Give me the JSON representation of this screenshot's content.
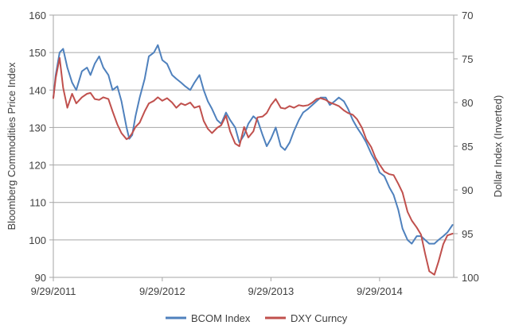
{
  "chart_data": {
    "type": "line",
    "title": "",
    "ylabel": "Bloomberg Commodities Price Index",
    "y2label": "Dollar Index (Inverted)",
    "ylim": [
      90,
      160
    ],
    "y2lim": [
      100,
      70
    ],
    "y2_inverted": true,
    "yticks": [
      "90",
      "100",
      "110",
      "120",
      "130",
      "140",
      "150",
      "160"
    ],
    "y2ticks": [
      "100",
      "95",
      "90",
      "85",
      "80",
      "75",
      "70"
    ],
    "xticks": [
      "9/29/2011",
      "9/29/2012",
      "9/29/2013",
      "9/29/2014"
    ],
    "xlim": [
      "2011-09-29",
      "2015-06-05"
    ],
    "grid": true,
    "legend": "bottom",
    "series": [
      {
        "name": "BCOM Index",
        "axis": "left",
        "color": "#4f81bd",
        "x": [
          "2011-09-29",
          "2011-10-07",
          "2011-10-20",
          "2011-11-01",
          "2011-11-15",
          "2011-12-01",
          "2011-12-15",
          "2012-01-03",
          "2012-01-20",
          "2012-02-01",
          "2012-02-15",
          "2012-03-01",
          "2012-03-15",
          "2012-04-01",
          "2012-04-15",
          "2012-05-01",
          "2012-05-15",
          "2012-06-01",
          "2012-06-10",
          "2012-06-20",
          "2012-07-01",
          "2012-07-15",
          "2012-08-01",
          "2012-08-15",
          "2012-09-01",
          "2012-09-14",
          "2012-09-29",
          "2012-10-15",
          "2012-11-01",
          "2012-11-15",
          "2012-12-01",
          "2012-12-15",
          "2013-01-01",
          "2013-01-15",
          "2013-02-01",
          "2013-02-15",
          "2013-03-01",
          "2013-03-15",
          "2013-04-01",
          "2013-04-15",
          "2013-05-01",
          "2013-05-15",
          "2013-06-01",
          "2013-06-15",
          "2013-07-01",
          "2013-07-15",
          "2013-08-01",
          "2013-08-15",
          "2013-09-01",
          "2013-09-15",
          "2013-09-29",
          "2013-10-15",
          "2013-11-01",
          "2013-11-15",
          "2013-12-01",
          "2013-12-15",
          "2014-01-01",
          "2014-01-15",
          "2014-02-01",
          "2014-02-15",
          "2014-03-01",
          "2014-03-15",
          "2014-04-01",
          "2014-04-15",
          "2014-05-01",
          "2014-05-15",
          "2014-06-01",
          "2014-06-15",
          "2014-07-01",
          "2014-07-15",
          "2014-08-01",
          "2014-08-15",
          "2014-09-01",
          "2014-09-15",
          "2014-09-29",
          "2014-10-15",
          "2014-11-01",
          "2014-11-15",
          "2014-12-01",
          "2014-12-15",
          "2015-01-01",
          "2015-01-15",
          "2015-02-01",
          "2015-02-15",
          "2015-03-01",
          "2015-03-15",
          "2015-04-01",
          "2015-04-15",
          "2015-05-01",
          "2015-05-15",
          "2015-06-01"
        ],
        "values": [
          138,
          144,
          150,
          151,
          146,
          142,
          140,
          145,
          146,
          144,
          147,
          149,
          146,
          144,
          140,
          141,
          137,
          130,
          127,
          128,
          133,
          138,
          143,
          149,
          150,
          152,
          148,
          147,
          144,
          143,
          142,
          141,
          140,
          142,
          144,
          140,
          137,
          135,
          132,
          131,
          134,
          132,
          130,
          126,
          128,
          131,
          133,
          132,
          128,
          125,
          127,
          130,
          125,
          124,
          126,
          129,
          132,
          134,
          135,
          136,
          137,
          138,
          138,
          136,
          137,
          138,
          137,
          135,
          132,
          130,
          128,
          126,
          123,
          121,
          118,
          117,
          114,
          112,
          108,
          103,
          100,
          99,
          101,
          101,
          100,
          99,
          99,
          100,
          101,
          102,
          104
        ]
      },
      {
        "name": "DXY Curncy",
        "axis": "right",
        "color": "#c0504d",
        "x": [
          "2011-09-29",
          "2011-10-07",
          "2011-10-20",
          "2011-11-01",
          "2011-11-15",
          "2011-12-01",
          "2011-12-15",
          "2012-01-03",
          "2012-01-20",
          "2012-02-01",
          "2012-02-15",
          "2012-03-01",
          "2012-03-15",
          "2012-04-01",
          "2012-04-15",
          "2012-05-01",
          "2012-05-15",
          "2012-06-01",
          "2012-06-10",
          "2012-06-20",
          "2012-07-01",
          "2012-07-15",
          "2012-08-01",
          "2012-08-15",
          "2012-09-01",
          "2012-09-14",
          "2012-09-29",
          "2012-10-15",
          "2012-11-01",
          "2012-11-15",
          "2012-12-01",
          "2012-12-15",
          "2013-01-01",
          "2013-01-15",
          "2013-02-01",
          "2013-02-15",
          "2013-03-01",
          "2013-03-15",
          "2013-04-01",
          "2013-04-15",
          "2013-05-01",
          "2013-05-15",
          "2013-06-01",
          "2013-06-15",
          "2013-07-01",
          "2013-07-15",
          "2013-08-01",
          "2013-08-15",
          "2013-09-01",
          "2013-09-15",
          "2013-09-29",
          "2013-10-15",
          "2013-11-01",
          "2013-11-15",
          "2013-12-01",
          "2013-12-15",
          "2014-01-01",
          "2014-01-15",
          "2014-02-01",
          "2014-02-15",
          "2014-03-01",
          "2014-03-15",
          "2014-04-01",
          "2014-04-15",
          "2014-05-01",
          "2014-05-15",
          "2014-06-01",
          "2014-06-15",
          "2014-07-01",
          "2014-07-15",
          "2014-08-01",
          "2014-08-15",
          "2014-09-01",
          "2014-09-15",
          "2014-09-29",
          "2014-10-15",
          "2014-11-01",
          "2014-11-15",
          "2014-12-01",
          "2014-12-15",
          "2015-01-01",
          "2015-01-15",
          "2015-02-01",
          "2015-02-15",
          "2015-03-01",
          "2015-03-15",
          "2015-04-01",
          "2015-04-15",
          "2015-05-01",
          "2015-05-15",
          "2015-06-01"
        ],
        "values": [
          79.5,
          77.2,
          74.9,
          78.3,
          80.6,
          79.0,
          80.1,
          79.4,
          79.0,
          78.9,
          79.6,
          79.7,
          79.4,
          79.6,
          81.0,
          82.5,
          83.5,
          84.2,
          84.0,
          83.5,
          82.8,
          82.3,
          81.0,
          80.1,
          79.8,
          79.4,
          79.8,
          79.5,
          80.0,
          80.6,
          80.1,
          80.3,
          80.0,
          80.6,
          80.4,
          82.1,
          83.0,
          83.5,
          82.9,
          82.6,
          81.5,
          83.3,
          84.7,
          85.0,
          82.8,
          84.0,
          83.3,
          81.7,
          81.6,
          81.2,
          80.3,
          79.6,
          80.6,
          80.7,
          80.4,
          80.6,
          80.3,
          80.4,
          80.3,
          80.0,
          79.6,
          79.5,
          79.7,
          80.0,
          80.2,
          80.4,
          80.9,
          81.2,
          81.4,
          81.9,
          82.9,
          84.2,
          85.1,
          86.3,
          87.1,
          87.9,
          88.2,
          88.3,
          89.3,
          90.3,
          92.5,
          93.5,
          94.3,
          95.1,
          97.3,
          99.3,
          99.7,
          98.2,
          96.2,
          95.2,
          95.0
        ]
      }
    ]
  }
}
